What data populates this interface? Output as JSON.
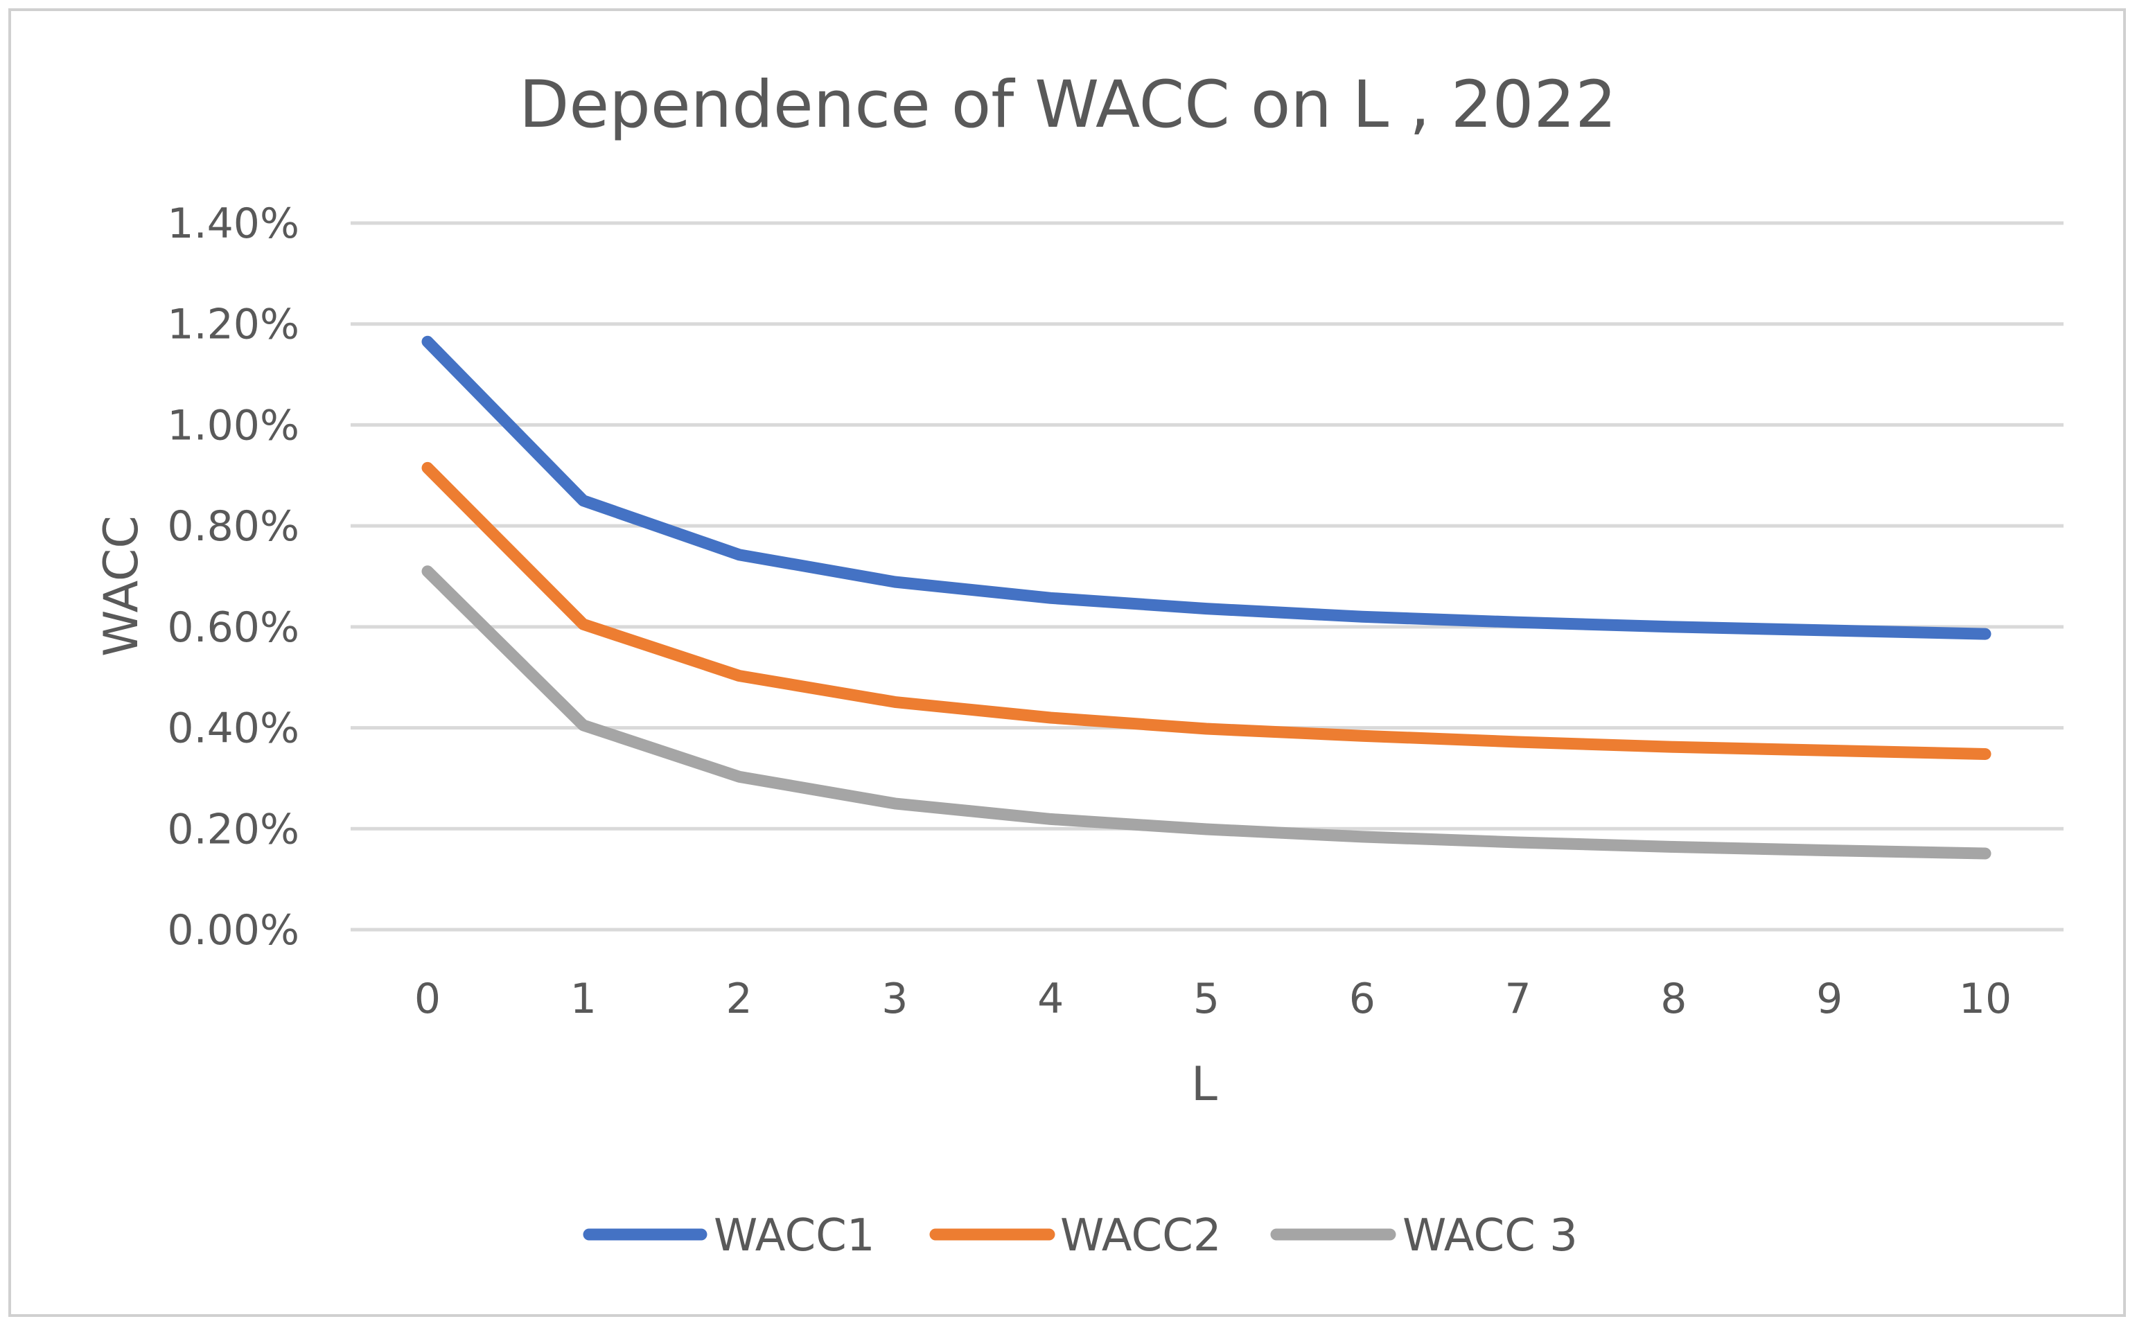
{
  "chart_data": {
    "type": "line",
    "title": "Dependence of WACC on L , 2022",
    "xlabel": "L",
    "ylabel": "WACC",
    "categories": [
      "0",
      "1",
      "2",
      "3",
      "4",
      "5",
      "6",
      "7",
      "8",
      "9",
      "10"
    ],
    "y_ticks": [
      "0.00%",
      "0.20%",
      "0.40%",
      "0.60%",
      "0.80%",
      "1.00%",
      "1.20%",
      "1.40%"
    ],
    "ylim": [
      0,
      0.014
    ],
    "grid": true,
    "legend_position": "bottom",
    "series": [
      {
        "name": "WACC1",
        "color": "#4472c4",
        "values": [
          0.01165,
          0.0085,
          0.00743,
          0.00689,
          0.00657,
          0.00636,
          0.0062,
          0.00609,
          0.006,
          0.00593,
          0.00586
        ]
      },
      {
        "name": "WACC2",
        "color": "#ed7d31",
        "values": [
          0.00915,
          0.00605,
          0.00503,
          0.00451,
          0.0042,
          0.00398,
          0.00384,
          0.00372,
          0.00362,
          0.00355,
          0.00348
        ]
      },
      {
        "name": "WACC 3",
        "color": "#a5a5a5",
        "values": [
          0.0071,
          0.00405,
          0.00303,
          0.0025,
          0.00219,
          0.00199,
          0.00184,
          0.00173,
          0.00164,
          0.00157,
          0.00151
        ]
      }
    ]
  }
}
